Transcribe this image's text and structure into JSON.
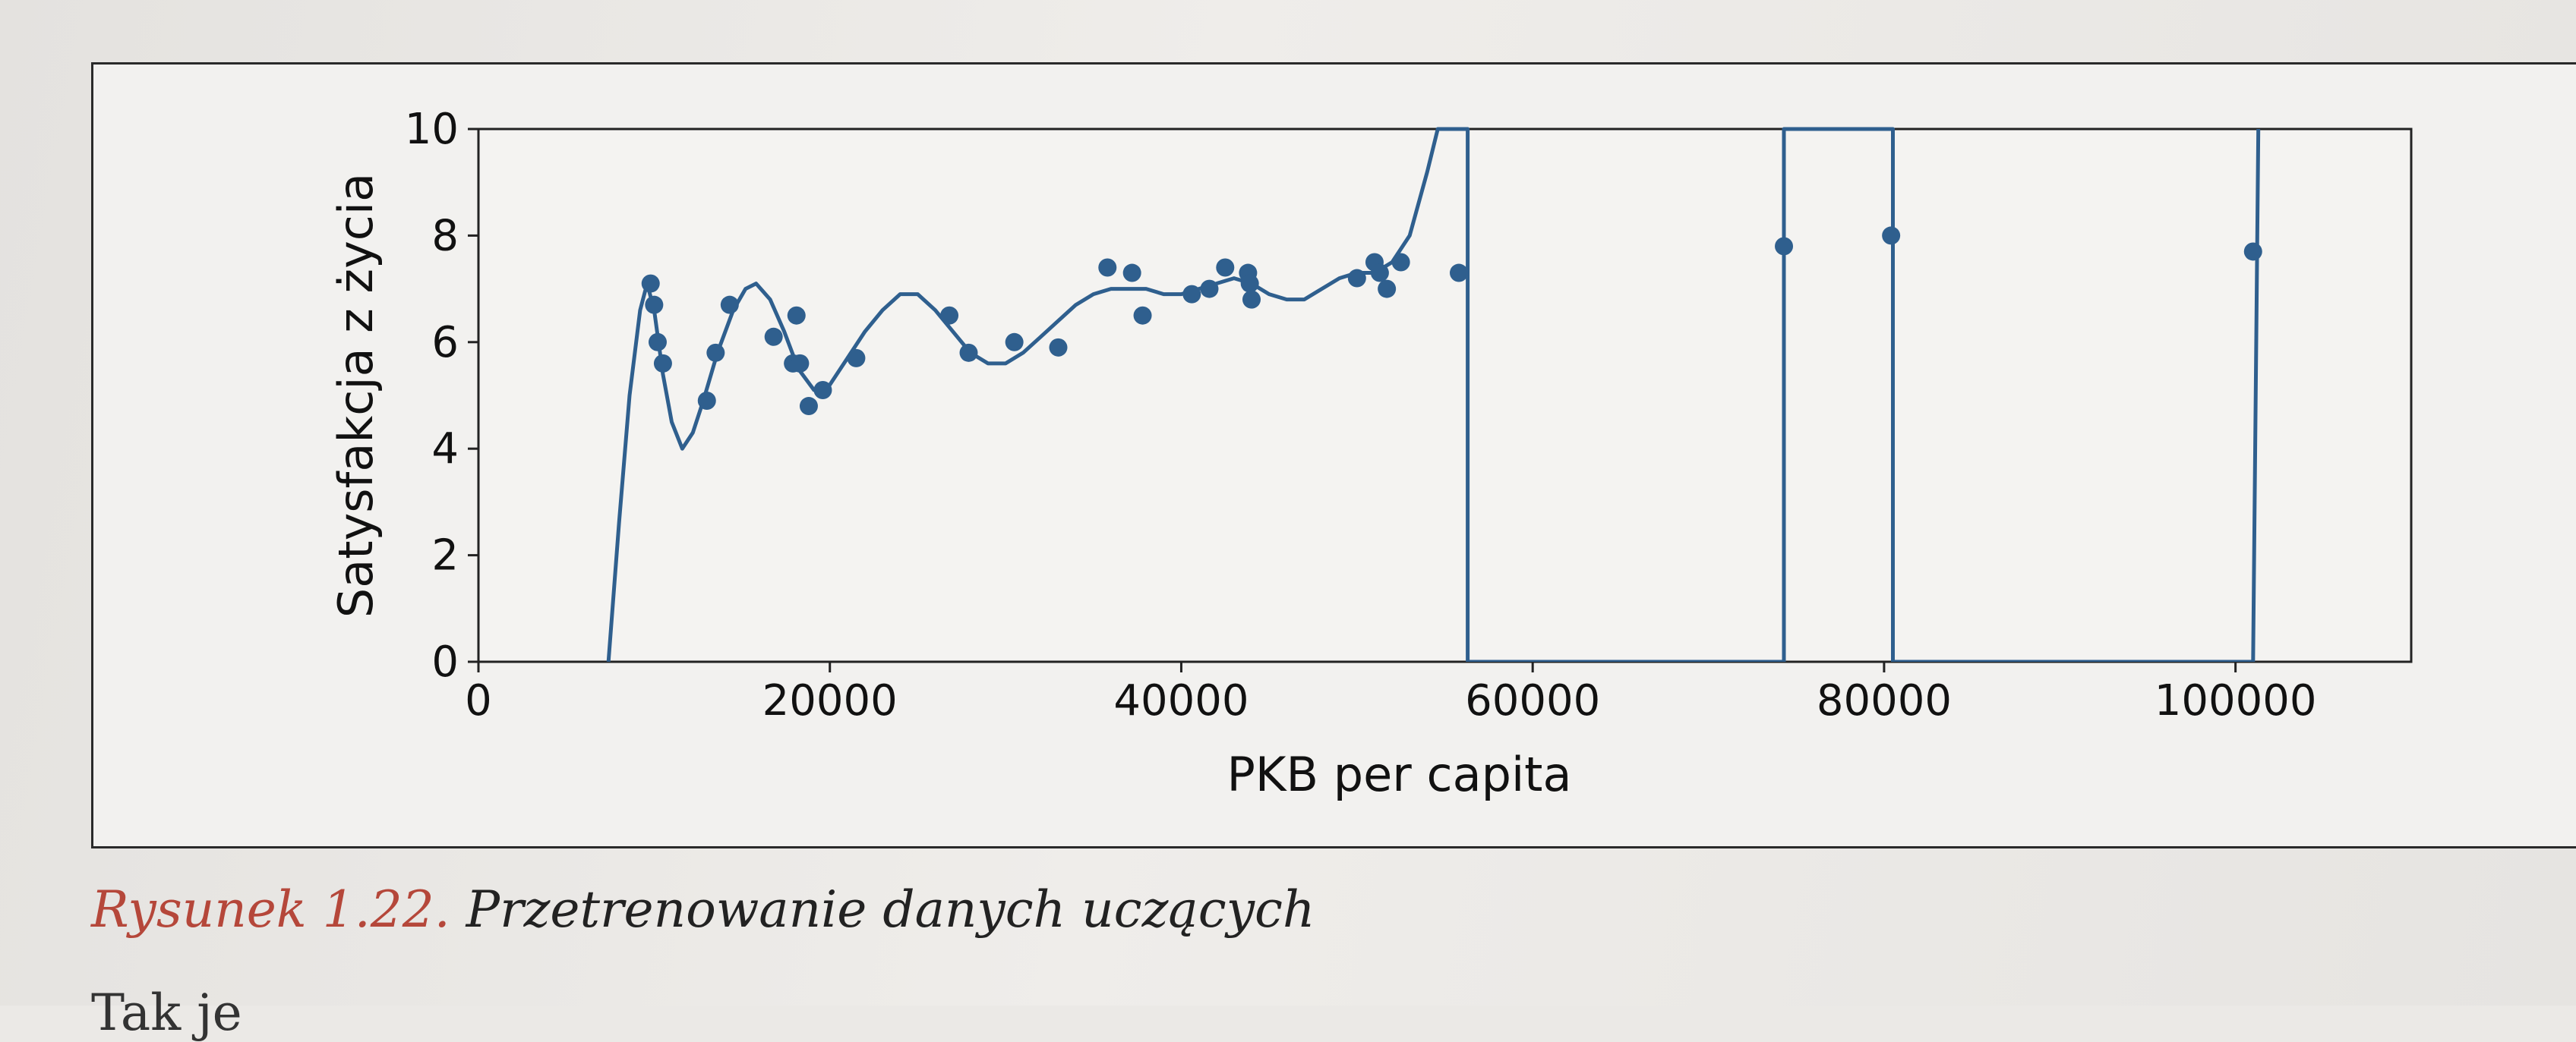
{
  "chart_data": {
    "type": "scatter",
    "title": "",
    "xlabel": "PKB per capita",
    "ylabel": "Satysfakcja z życia",
    "xlim": [
      0,
      110000
    ],
    "ylim": [
      0,
      10
    ],
    "xticks": [
      0,
      20000,
      40000,
      60000,
      80000,
      100000
    ],
    "yticks": [
      0,
      2,
      4,
      6,
      8,
      10
    ],
    "grid": false,
    "legend": "none",
    "color": "#2f5f8e",
    "series": [
      {
        "type": "scatter",
        "x": [
          9800,
          10000,
          10200,
          10500,
          13000,
          13500,
          14300,
          16800,
          17900,
          18100,
          18300,
          18800,
          19600,
          21500,
          26800,
          27900,
          30500,
          33000,
          35800,
          37200,
          37800,
          40600,
          41600,
          42500,
          43800,
          43900,
          44000,
          50000,
          51000,
          51300,
          51700,
          52500,
          55800,
          74300,
          80400,
          101000
        ],
        "y": [
          7.1,
          6.7,
          6.0,
          5.6,
          4.9,
          5.8,
          6.7,
          6.1,
          5.6,
          6.5,
          5.6,
          4.8,
          5.1,
          5.7,
          6.5,
          5.8,
          6.0,
          5.9,
          7.4,
          7.3,
          6.5,
          6.9,
          7.0,
          7.4,
          7.3,
          7.1,
          6.8,
          7.2,
          7.5,
          7.3,
          7.0,
          7.5,
          7.3,
          7.8,
          8.0,
          7.7
        ]
      },
      {
        "type": "line",
        "x": [
          7400,
          8000,
          8600,
          9200,
          9600,
          10000,
          10500,
          11000,
          11600,
          12200,
          12800,
          13600,
          14500,
          15200,
          15800,
          16600,
          17400,
          18200,
          19100,
          20000,
          21000,
          22000,
          23000,
          24000,
          25000,
          26000,
          27000,
          28000,
          29000,
          30000,
          31000,
          32000,
          33000,
          34000,
          35000,
          36000,
          37000,
          38000,
          39000,
          40000,
          41000,
          42000,
          43000,
          44000,
          45000,
          46000,
          47000,
          48000,
          49000,
          50000,
          51000,
          52000,
          53000,
          54000,
          54600,
          55200,
          55800,
          56300,
          56300,
          74300,
          74300,
          80500,
          80500,
          101000,
          101300
        ],
        "y": [
          0,
          2.6,
          5.0,
          6.6,
          7.1,
          6.6,
          5.4,
          4.5,
          4.0,
          4.3,
          4.9,
          5.8,
          6.6,
          7.0,
          7.1,
          6.8,
          6.2,
          5.5,
          5.1,
          5.2,
          5.7,
          6.2,
          6.6,
          6.9,
          6.9,
          6.6,
          6.2,
          5.8,
          5.6,
          5.6,
          5.8,
          6.1,
          6.4,
          6.7,
          6.9,
          7.0,
          7.0,
          7.0,
          6.9,
          6.9,
          7.0,
          7.1,
          7.2,
          7.1,
          6.9,
          6.8,
          6.8,
          7.0,
          7.2,
          7.3,
          7.3,
          7.5,
          8.0,
          9.2,
          10,
          10,
          10,
          10,
          0,
          0,
          10,
          10,
          0,
          0,
          10
        ]
      }
    ]
  },
  "caption": {
    "label": "Rysunek 1.22.",
    "text": "Przetrenowanie danych uczących"
  },
  "next_text": "Tak je"
}
